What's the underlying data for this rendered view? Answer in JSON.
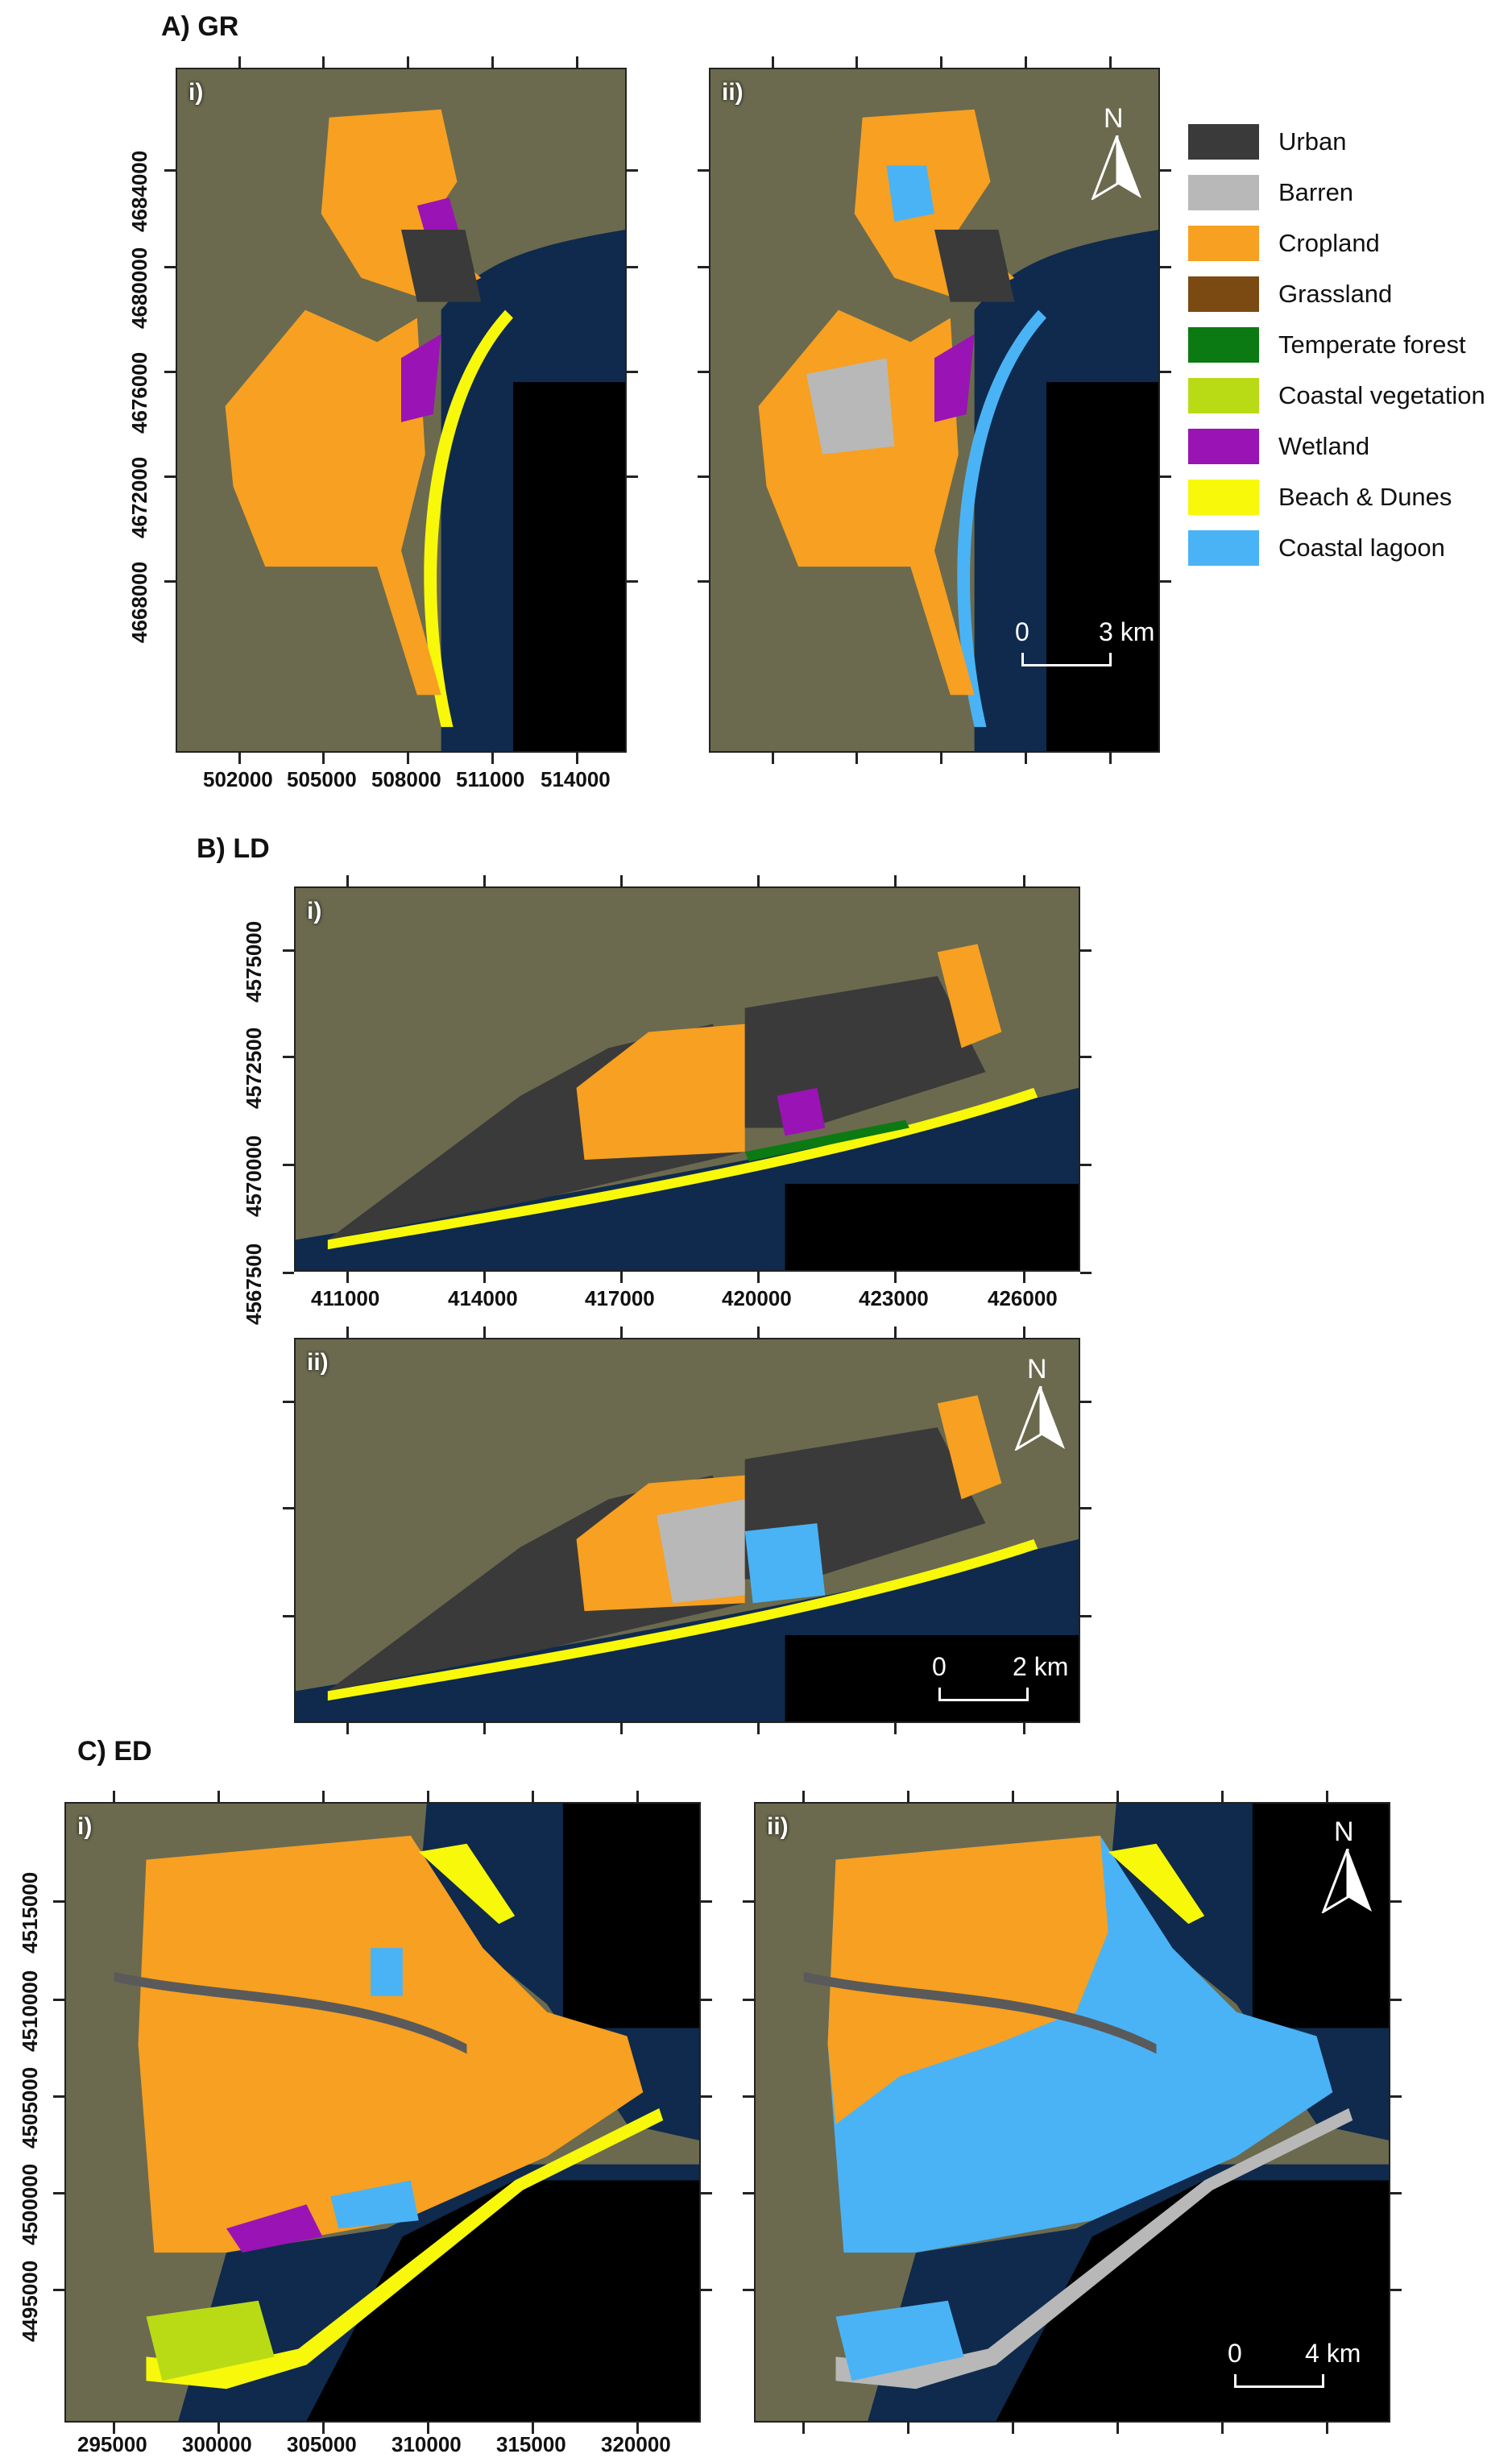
{
  "sections": {
    "gr": {
      "title": "A) GR",
      "panel_i": "i)",
      "panel_ii": "ii)",
      "y_ticks": [
        "4684000",
        "4680000",
        "4676000",
        "4672000",
        "4668000"
      ],
      "x_ticks": [
        "502000",
        "505000",
        "508000",
        "511000",
        "514000"
      ],
      "scale_start": "0",
      "scale_end": "3 km",
      "north": "N"
    },
    "ld": {
      "title": "B) LD",
      "panel_i": "i)",
      "panel_ii": "ii)",
      "y_ticks": [
        "4575000",
        "4572500",
        "4570000",
        "4567500"
      ],
      "x_ticks": [
        "411000",
        "414000",
        "417000",
        "420000",
        "423000",
        "426000"
      ],
      "scale_start": "0",
      "scale_end": "2 km",
      "north": "N"
    },
    "ed": {
      "title": "C) ED",
      "panel_i": "i)",
      "panel_ii": "ii)",
      "y_ticks": [
        "4515000",
        "4510000",
        "4505000",
        "4500000",
        "4495000"
      ],
      "x_ticks": [
        "295000",
        "300000",
        "305000",
        "310000",
        "315000",
        "320000"
      ],
      "scale_start": "0",
      "scale_end": "4 km",
      "north": "N"
    }
  },
  "legend": [
    {
      "label": "Urban",
      "color": "#3a3a3a"
    },
    {
      "label": "Barren",
      "color": "#b8b8b8"
    },
    {
      "label": "Cropland",
      "color": "#f7a021"
    },
    {
      "label": "Grassland",
      "color": "#7a4a12"
    },
    {
      "label": "Temperate forest",
      "color": "#0b7a12"
    },
    {
      "label": "Coastal vegetation",
      "color": "#b9db16"
    },
    {
      "label": "Wetland",
      "color": "#9a13b5"
    },
    {
      "label": "Beach & Dunes",
      "color": "#f8f80a"
    },
    {
      "label": "Coastal lagoon",
      "color": "#4ab3f5"
    }
  ],
  "colors": {
    "land": "#6b6a4e",
    "sea": "#0f2a4d",
    "nodata": "#000000"
  }
}
